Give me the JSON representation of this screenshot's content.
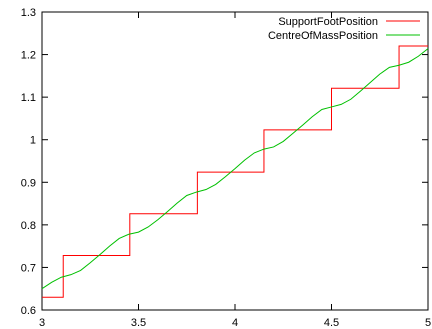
{
  "chart_data": {
    "type": "line",
    "xlim": [
      3,
      5
    ],
    "ylim": [
      0.6,
      1.3
    ],
    "x_ticks": [
      "3",
      "3.5",
      "4",
      "4.5",
      "5"
    ],
    "y_ticks": [
      "0.6",
      "0.7",
      "0.8",
      "0.9",
      "1",
      "1.1",
      "1.2",
      "1.3"
    ],
    "grid": false,
    "legend_position": "top-right",
    "series": [
      {
        "name": "SupportFootPosition",
        "color": "#ff0000",
        "style": "step",
        "points": [
          [
            3.0,
            0.63
          ],
          [
            3.11,
            0.63
          ],
          [
            3.11,
            0.728
          ],
          [
            3.455,
            0.728
          ],
          [
            3.455,
            0.826
          ],
          [
            3.805,
            0.826
          ],
          [
            3.805,
            0.924
          ],
          [
            4.15,
            0.924
          ],
          [
            4.15,
            1.023
          ],
          [
            4.5,
            1.023
          ],
          [
            4.5,
            1.121
          ],
          [
            4.85,
            1.121
          ],
          [
            4.85,
            1.22
          ],
          [
            5.0,
            1.22
          ]
        ]
      },
      {
        "name": "CentreOfMassPosition",
        "color": "#00c000",
        "style": "line",
        "points": [
          [
            3.0,
            0.65
          ],
          [
            3.05,
            0.665
          ],
          [
            3.1,
            0.677
          ],
          [
            3.15,
            0.683
          ],
          [
            3.2,
            0.693
          ],
          [
            3.25,
            0.711
          ],
          [
            3.3,
            0.73
          ],
          [
            3.35,
            0.75
          ],
          [
            3.4,
            0.768
          ],
          [
            3.45,
            0.778
          ],
          [
            3.5,
            0.783
          ],
          [
            3.55,
            0.795
          ],
          [
            3.6,
            0.812
          ],
          [
            3.65,
            0.831
          ],
          [
            3.7,
            0.851
          ],
          [
            3.75,
            0.869
          ],
          [
            3.8,
            0.877
          ],
          [
            3.85,
            0.883
          ],
          [
            3.9,
            0.895
          ],
          [
            3.95,
            0.913
          ],
          [
            4.0,
            0.932
          ],
          [
            4.05,
            0.952
          ],
          [
            4.1,
            0.969
          ],
          [
            4.15,
            0.978
          ],
          [
            4.2,
            0.983
          ],
          [
            4.25,
            0.996
          ],
          [
            4.3,
            1.015
          ],
          [
            4.35,
            1.034
          ],
          [
            4.4,
            1.054
          ],
          [
            4.45,
            1.071
          ],
          [
            4.5,
            1.077
          ],
          [
            4.55,
            1.083
          ],
          [
            4.6,
            1.095
          ],
          [
            4.65,
            1.114
          ],
          [
            4.7,
            1.134
          ],
          [
            4.75,
            1.154
          ],
          [
            4.8,
            1.17
          ],
          [
            4.85,
            1.175
          ],
          [
            4.9,
            1.182
          ],
          [
            4.95,
            1.196
          ],
          [
            5.0,
            1.214
          ]
        ]
      }
    ]
  }
}
